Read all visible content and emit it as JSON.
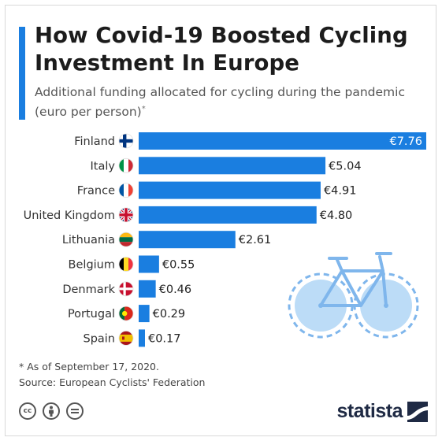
{
  "header": {
    "title": "How Covid-19 Boosted Cycling Investment In Europe",
    "subtitle": "Additional funding allocated for cycling during the pandemic (euro per person)",
    "subtitle_marker": "*"
  },
  "footer": {
    "note": "* As of September 17, 2020.",
    "source": "Source: European Cyclists' Federation",
    "brand": "statista"
  },
  "icons": {
    "license": [
      "creative-commons-icon",
      "attribution-icon",
      "no-derivatives-icon"
    ],
    "illustration": "bicycle-icon",
    "brand_mark": "statista-logo-icon"
  },
  "colors": {
    "bar": "#1a7ee0",
    "accent": "#1a7ee0",
    "bicycle_fill": "#bcdcf7",
    "bicycle_stroke": "#7fb6ec"
  },
  "chart_data": {
    "type": "bar",
    "orientation": "horizontal",
    "categories": [
      "Finland",
      "Italy",
      "France",
      "United Kingdom",
      "Lithuania",
      "Belgium",
      "Denmark",
      "Portugal",
      "Spain"
    ],
    "values": [
      7.76,
      5.04,
      4.91,
      4.8,
      2.61,
      0.55,
      0.46,
      0.29,
      0.17
    ],
    "value_labels": [
      "€7.76",
      "€5.04",
      "€4.91",
      "€4.80",
      "€2.61",
      "€0.55",
      "€0.46",
      "€0.29",
      "€0.17"
    ],
    "flag_icons": [
      "flag-finland-icon",
      "flag-italy-icon",
      "flag-france-icon",
      "flag-uk-icon",
      "flag-lithuania-icon",
      "flag-belgium-icon",
      "flag-denmark-icon",
      "flag-portugal-icon",
      "flag-spain-icon"
    ],
    "unit": "euro per person",
    "xlim": [
      0,
      7.76
    ],
    "grid": false,
    "legend": "none"
  }
}
